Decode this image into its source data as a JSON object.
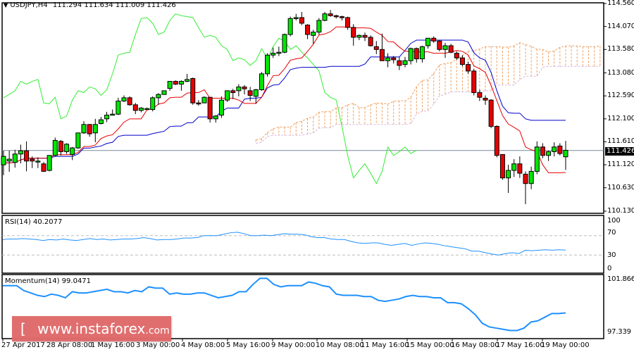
{
  "header": {
    "symbol_label": "USDJPY,H4",
    "ohlc_text": "111.294 111.634 111.009 111.426"
  },
  "price_axis": {
    "ticks": [
      "114.560",
      "114.070",
      "113.580",
      "113.080",
      "112.590",
      "112.100",
      "111.610",
      "111.120",
      "110.630",
      "110.130"
    ],
    "current_price": "111.426"
  },
  "rsi_panel": {
    "label": "RSI(14) 40.2077",
    "ticks": [
      "100",
      "70",
      "30",
      "0"
    ]
  },
  "momentum_panel": {
    "label": "Momentum(14) 99.0471",
    "ticks": [
      "101.8665",
      "97.339"
    ]
  },
  "time_axis": {
    "labels": [
      "27 Apr 2017",
      "28 Apr 08:00",
      "1 May 16:00",
      "3 May 00:00",
      "4 May 08:00",
      "5 May 16:00",
      "9 May 00:00",
      "10 May 08:00",
      "11 May 16:00",
      "15 May 00:00",
      "16 May 08:00",
      "17 May 16:00",
      "19 May 00:00"
    ]
  },
  "watermark": {
    "open_bracket": "[",
    "main": "www.instaforex",
    "suffix": ".com",
    "close_bracket": "]"
  },
  "colors": {
    "bull_candle": "#00e600",
    "bear_candle": "#e60000",
    "tenkan": "#e60000",
    "kijun": "#0000c8",
    "chikou": "#33ee33",
    "kumo": "#f0a060",
    "kumo_span_b": "#d8b8e0",
    "rsi_line": "#1e90ff",
    "momentum_line": "#1e90ff",
    "watermark_bg": "#e06a6a"
  },
  "chart_data": [
    {
      "type": "candlestick",
      "title": "USDJPY,H4",
      "ylabel": "Price",
      "ylim": [
        110.13,
        114.56
      ],
      "current_price": 111.426,
      "last_bar": {
        "open": 111.294,
        "high": 111.634,
        "low": 111.009,
        "close": 111.426
      },
      "ohlc": [
        [
          111.12,
          111.42,
          110.9,
          111.3
        ],
        [
          111.2,
          111.42,
          110.97,
          111.24
        ],
        [
          111.17,
          111.44,
          111.06,
          111.35
        ],
        [
          111.35,
          111.55,
          111.15,
          111.42
        ],
        [
          111.42,
          111.62,
          110.98,
          111.2
        ],
        [
          111.24,
          111.3,
          111.05,
          111.2
        ],
        [
          111.2,
          111.28,
          111.05,
          111.2
        ],
        [
          111.14,
          111.18,
          110.97,
          110.98
        ],
        [
          111.0,
          111.32,
          110.98,
          111.32
        ],
        [
          111.32,
          111.7,
          111.3,
          111.64
        ],
        [
          111.62,
          111.65,
          111.32,
          111.4
        ],
        [
          111.4,
          111.58,
          111.35,
          111.56
        ],
        [
          111.34,
          111.5,
          111.22,
          111.48
        ],
        [
          111.48,
          111.8,
          111.46,
          111.8
        ],
        [
          111.8,
          112.05,
          111.78,
          111.98
        ],
        [
          111.98,
          111.99,
          111.72,
          111.78
        ],
        [
          111.8,
          112.1,
          111.6,
          111.98
        ],
        [
          112.0,
          112.14,
          111.98,
          112.08
        ],
        [
          112.1,
          112.25,
          112.03,
          112.18
        ],
        [
          112.2,
          112.3,
          112.18,
          112.2
        ],
        [
          112.2,
          112.55,
          112.18,
          112.48
        ],
        [
          112.48,
          112.6,
          112.46,
          112.55
        ],
        [
          112.55,
          112.58,
          112.38,
          112.4
        ],
        [
          112.4,
          112.44,
          112.2,
          112.28
        ],
        [
          112.28,
          112.35,
          112.24,
          112.33
        ],
        [
          112.3,
          112.34,
          112.3,
          112.32
        ],
        [
          112.3,
          112.58,
          112.26,
          112.55
        ],
        [
          112.55,
          112.65,
          112.4,
          112.62
        ],
        [
          112.62,
          112.7,
          112.62,
          112.7
        ],
        [
          112.75,
          112.9,
          112.7,
          112.9
        ],
        [
          112.9,
          112.92,
          112.82,
          112.84
        ],
        [
          112.84,
          112.92,
          112.7,
          112.9
        ],
        [
          112.9,
          113.06,
          112.88,
          112.94
        ],
        [
          112.96,
          112.98,
          112.4,
          112.44
        ],
        [
          112.44,
          112.5,
          112.38,
          112.42
        ],
        [
          112.44,
          112.58,
          112.44,
          112.56
        ],
        [
          112.56,
          112.56,
          112.02,
          112.1
        ],
        [
          112.1,
          112.18,
          112.02,
          112.16
        ],
        [
          112.18,
          112.58,
          112.12,
          112.5
        ],
        [
          112.5,
          112.7,
          112.46,
          112.7
        ],
        [
          112.7,
          112.74,
          112.52,
          112.66
        ],
        [
          112.7,
          112.84,
          112.58,
          112.78
        ],
        [
          112.78,
          112.82,
          112.62,
          112.74
        ],
        [
          112.7,
          112.78,
          112.48,
          112.6
        ],
        [
          112.58,
          112.74,
          112.42,
          112.72
        ],
        [
          112.72,
          113.1,
          112.7,
          113.06
        ],
        [
          113.06,
          113.5,
          113.0,
          113.46
        ],
        [
          113.46,
          113.62,
          113.4,
          113.5
        ],
        [
          113.5,
          113.64,
          113.44,
          113.52
        ],
        [
          113.52,
          113.92,
          113.5,
          113.9
        ],
        [
          113.9,
          114.28,
          113.86,
          114.24
        ],
        [
          114.24,
          114.34,
          114.2,
          114.26
        ],
        [
          114.26,
          114.38,
          114.1,
          114.14
        ],
        [
          114.1,
          114.12,
          113.8,
          113.9
        ],
        [
          113.88,
          114.0,
          113.7,
          113.95
        ],
        [
          113.95,
          114.25,
          113.9,
          114.2
        ],
        [
          114.2,
          114.38,
          114.18,
          114.34
        ],
        [
          114.34,
          114.42,
          114.28,
          114.3
        ],
        [
          114.3,
          114.32,
          114.24,
          114.28
        ],
        [
          114.28,
          114.3,
          114.2,
          114.26
        ],
        [
          114.26,
          114.28,
          114.0,
          114.05
        ],
        [
          114.05,
          114.12,
          113.66,
          113.84
        ],
        [
          113.84,
          113.9,
          113.78,
          113.88
        ],
        [
          113.88,
          113.94,
          113.76,
          113.84
        ],
        [
          113.84,
          113.88,
          113.64,
          113.66
        ],
        [
          113.64,
          113.76,
          113.48,
          113.58
        ],
        [
          113.58,
          113.92,
          113.44,
          113.34
        ],
        [
          113.34,
          113.5,
          113.2,
          113.4
        ],
        [
          113.4,
          113.44,
          113.28,
          113.36
        ],
        [
          113.34,
          113.42,
          113.14,
          113.24
        ],
        [
          113.26,
          113.42,
          113.2,
          113.34
        ],
        [
          113.34,
          113.62,
          113.26,
          113.6
        ],
        [
          113.6,
          113.62,
          113.3,
          113.38
        ],
        [
          113.38,
          113.66,
          113.3,
          113.64
        ],
        [
          113.66,
          113.82,
          113.6,
          113.82
        ],
        [
          113.82,
          113.86,
          113.72,
          113.76
        ],
        [
          113.76,
          113.78,
          113.54,
          113.58
        ],
        [
          113.58,
          113.72,
          113.4,
          113.66
        ],
        [
          113.66,
          113.7,
          113.5,
          113.52
        ],
        [
          113.5,
          113.54,
          113.36,
          113.4
        ],
        [
          113.4,
          113.46,
          113.22,
          113.26
        ],
        [
          113.26,
          113.32,
          113.06,
          113.12
        ],
        [
          113.12,
          113.16,
          112.6,
          112.66
        ],
        [
          112.66,
          112.72,
          112.48,
          112.56
        ],
        [
          112.54,
          112.6,
          112.4,
          112.5
        ],
        [
          112.5,
          112.52,
          111.9,
          111.94
        ],
        [
          111.94,
          111.96,
          111.28,
          111.32
        ],
        [
          111.34,
          111.34,
          110.8,
          110.84
        ],
        [
          110.84,
          111.12,
          110.52,
          111.0
        ],
        [
          111.0,
          111.24,
          110.86,
          111.14
        ],
        [
          111.14,
          111.3,
          110.84,
          110.94
        ],
        [
          110.92,
          110.98,
          110.28,
          110.72
        ],
        [
          110.72,
          111.08,
          110.6,
          110.98
        ],
        [
          110.98,
          111.62,
          110.92,
          111.5
        ],
        [
          111.5,
          111.58,
          111.26,
          111.32
        ],
        [
          111.32,
          111.42,
          111.2,
          111.4
        ],
        [
          111.4,
          111.6,
          111.3,
          111.5
        ],
        [
          111.52,
          111.58,
          111.32,
          111.36
        ],
        [
          111.29,
          111.63,
          111.01,
          111.43
        ]
      ]
    },
    {
      "type": "line",
      "title": "RSI(14) 40.2077",
      "ylim": [
        0,
        100
      ],
      "reference_lines": [
        30,
        70
      ],
      "values": [
        62,
        63,
        63,
        64,
        63,
        62,
        60,
        62,
        61,
        63,
        61,
        60,
        62,
        64,
        62,
        63,
        61,
        62,
        63,
        63,
        64,
        66,
        64,
        61,
        62,
        62,
        63,
        65,
        65,
        66,
        70,
        70,
        70,
        73,
        76,
        77,
        74,
        70,
        70,
        71,
        70,
        72,
        74,
        73,
        73,
        72,
        68,
        66,
        66,
        63,
        62,
        62,
        58,
        55,
        54,
        55,
        55,
        52,
        50,
        52,
        54,
        50,
        53,
        55,
        54,
        52,
        49,
        47,
        45,
        43,
        38,
        38,
        35,
        32,
        30,
        33,
        35,
        33,
        40,
        39,
        40,
        41,
        40,
        41,
        40.2
      ]
    },
    {
      "type": "line",
      "title": "Momentum(14) 99.0471",
      "ylim": [
        97.339,
        101.8665
      ],
      "values": [
        101.3,
        101.3,
        101.3,
        100.9,
        100.7,
        100.5,
        100.4,
        100.6,
        100.5,
        100.3,
        100.8,
        100.7,
        100.7,
        100.8,
        100.9,
        101.0,
        100.8,
        100.8,
        100.7,
        100.9,
        100.8,
        101.2,
        101.1,
        101.1,
        100.6,
        100.7,
        100.6,
        100.6,
        100.7,
        100.7,
        100.5,
        100.3,
        100.4,
        100.5,
        100.8,
        100.8,
        101.4,
        101.9,
        101.9,
        101.4,
        101.2,
        101.3,
        101.3,
        101.3,
        101.6,
        101.5,
        101.3,
        101.2,
        100.6,
        100.5,
        100.5,
        100.5,
        100.4,
        100.4,
        100.1,
        100.0,
        100.1,
        100.2,
        100.4,
        100.5,
        100.4,
        100.4,
        100.3,
        100.3,
        99.9,
        99.9,
        99.8,
        99.4,
        98.9,
        98.2,
        97.9,
        97.8,
        97.7,
        97.6,
        97.6,
        97.8,
        98.3,
        98.4,
        98.7,
        99.0,
        99.0,
        99.05
      ]
    }
  ]
}
